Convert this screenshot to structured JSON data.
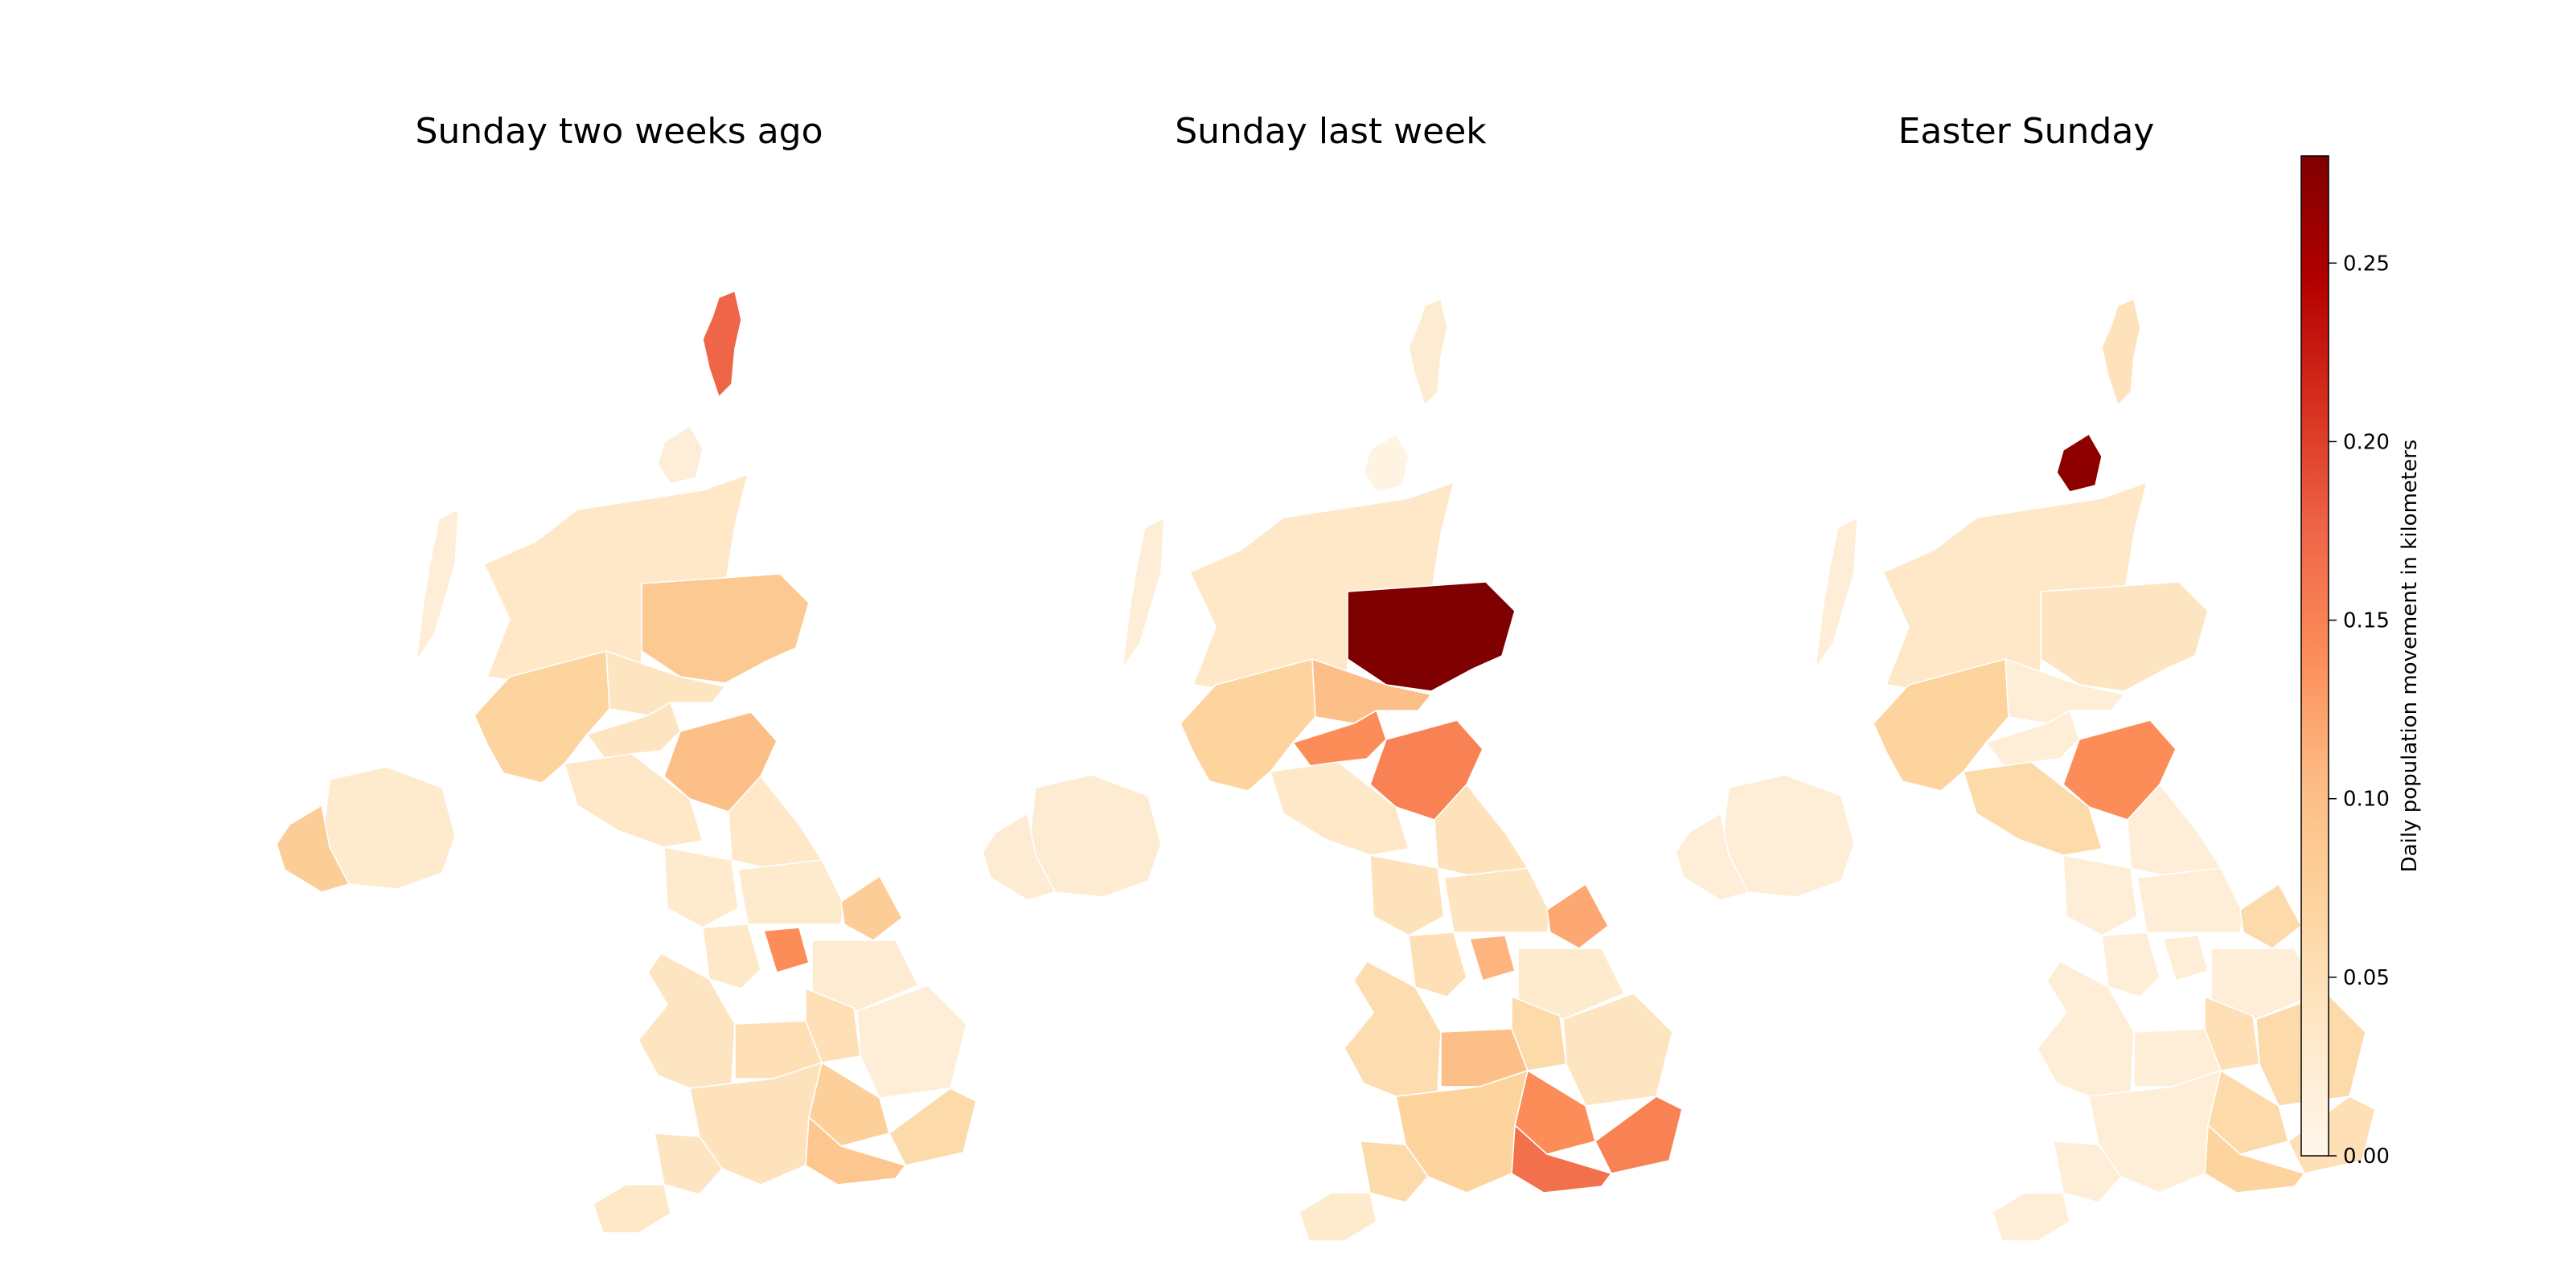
{
  "chart_data": {
    "type": "choropleth",
    "panels": [
      {
        "title": "Sunday two weeks ago",
        "regions": {
          "shetland": 0.175,
          "orkney": 0.02,
          "highland": 0.035,
          "western-isles": 0.02,
          "aberdeenshire": 0.085,
          "tayside": 0.04,
          "argyll": 0.07,
          "central-scotland": 0.04,
          "lothian-borders": 0.1,
          "southwest-scotland": 0.035,
          "northern-ireland": 0.03,
          "fermanagh": 0.08,
          "northeast-england": 0.035,
          "cumbria": 0.03,
          "yorkshire": 0.03,
          "humber": 0.08,
          "lancashire": 0.035,
          "manchester": 0.14,
          "lincolnshire": 0.025,
          "wales": 0.04,
          "west-midlands": 0.05,
          "east-midlands": 0.05,
          "east-anglia": 0.02,
          "london-area": 0.075,
          "southeast": 0.06,
          "south-coast": 0.09,
          "southwest": 0.045,
          "devon": 0.04,
          "cornwall": 0.035
        }
      },
      {
        "title": "Sunday last week",
        "regions": {
          "shetland": 0.025,
          "orkney": 0.01,
          "highland": 0.035,
          "western-isles": 0.02,
          "aberdeenshire": 0.28,
          "tayside": 0.1,
          "argyll": 0.07,
          "central-scotland": 0.14,
          "lothian-borders": 0.15,
          "southwest-scotland": 0.035,
          "northern-ireland": 0.025,
          "fermanagh": 0.025,
          "northeast-england": 0.045,
          "cumbria": 0.045,
          "yorkshire": 0.04,
          "humber": 0.12,
          "lancashire": 0.05,
          "manchester": 0.11,
          "lincolnshire": 0.03,
          "wales": 0.055,
          "west-midlands": 0.1,
          "east-midlands": 0.06,
          "east-anglia": 0.04,
          "london-area": 0.14,
          "southeast": 0.15,
          "south-coast": 0.165,
          "southwest": 0.07,
          "devon": 0.06,
          "cornwall": 0.03
        }
      },
      {
        "title": "Easter Sunday",
        "regions": {
          "shetland": 0.045,
          "orkney": 0.27,
          "highland": 0.035,
          "western-isles": 0.02,
          "aberdeenshire": 0.04,
          "tayside": 0.02,
          "argyll": 0.07,
          "central-scotland": 0.02,
          "lothian-borders": 0.14,
          "southwest-scotland": 0.06,
          "northern-ireland": 0.02,
          "fermanagh": 0.02,
          "northeast-england": 0.02,
          "cumbria": 0.02,
          "yorkshire": 0.02,
          "humber": 0.06,
          "lancashire": 0.02,
          "manchester": 0.02,
          "lincolnshire": 0.02,
          "wales": 0.02,
          "west-midlands": 0.02,
          "east-midlands": 0.05,
          "east-anglia": 0.06,
          "london-area": 0.06,
          "southeast": 0.05,
          "south-coast": 0.07,
          "southwest": 0.02,
          "devon": 0.02,
          "cornwall": 0.02
        }
      }
    ],
    "colorbar": {
      "label": "Daily population movement in kilometers",
      "min": 0.0,
      "max": 0.28,
      "ticks": [
        0.0,
        0.05,
        0.1,
        0.15,
        0.2,
        0.25
      ],
      "tick_labels": [
        "0.00",
        "0.05",
        "0.10",
        "0.15",
        "0.20",
        "0.25"
      ],
      "colormap": "OrRd",
      "colormap_stops": [
        "#fff7ec",
        "#fee8c8",
        "#fdd49e",
        "#fdbb84",
        "#fc8d59",
        "#ef6548",
        "#d7301f",
        "#b30000",
        "#7f0000"
      ]
    }
  }
}
